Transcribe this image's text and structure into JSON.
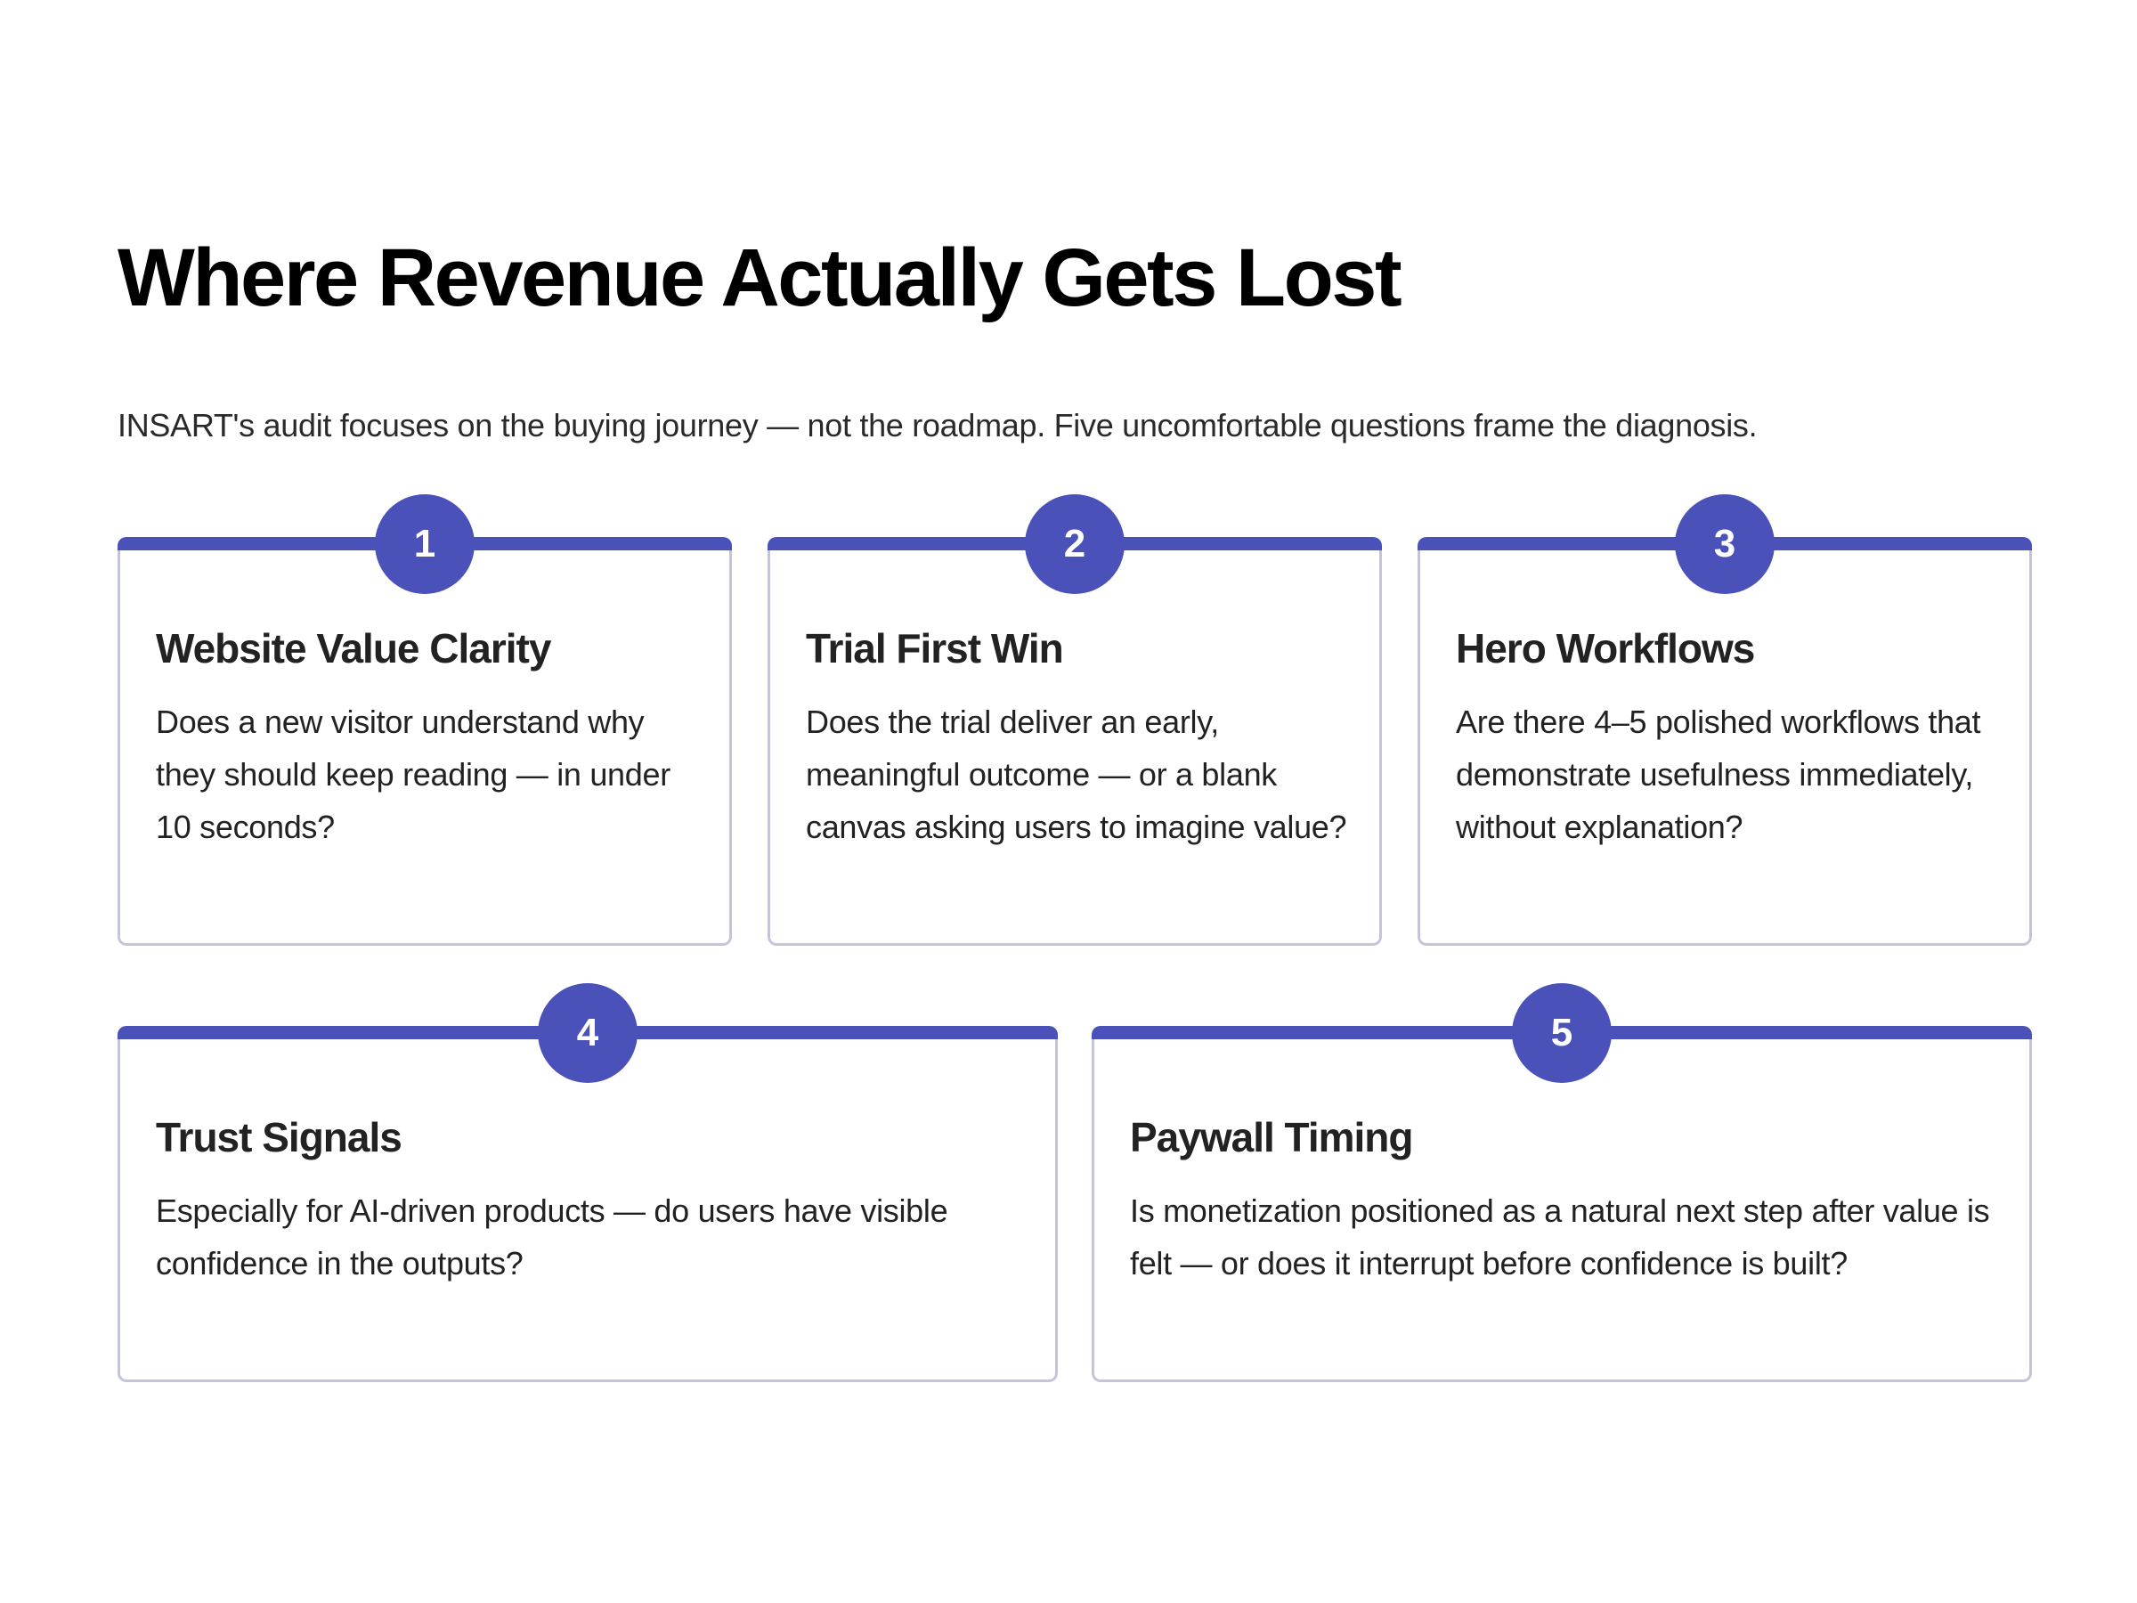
{
  "header": {
    "title": "Where Revenue Actually Gets Lost",
    "subtitle": "INSART's audit focuses on the buying journey — not the roadmap. Five uncomfortable questions frame the diagnosis."
  },
  "colors": {
    "accent": "#4a51b9",
    "card_border": "#c5c5da",
    "text": "#222222",
    "title": "#000000"
  },
  "cards": [
    {
      "number": "1",
      "title": "Website Value Clarity",
      "body": "Does a new visitor understand why they should keep reading — in under 10 seconds?"
    },
    {
      "number": "2",
      "title": "Trial First Win",
      "body": "Does the trial deliver an early, meaningful outcome — or a blank canvas asking users to imagine value?"
    },
    {
      "number": "3",
      "title": "Hero Workflows",
      "body": "Are there 4–5 polished workflows that demonstrate usefulness immediately, without explanation?"
    },
    {
      "number": "4",
      "title": "Trust Signals",
      "body": "Especially for AI-driven products — do users have visible confidence in the outputs?"
    },
    {
      "number": "5",
      "title": "Paywall Timing",
      "body": "Is monetization positioned as a natural next step after value is felt — or does it interrupt before confidence is built?"
    }
  ]
}
